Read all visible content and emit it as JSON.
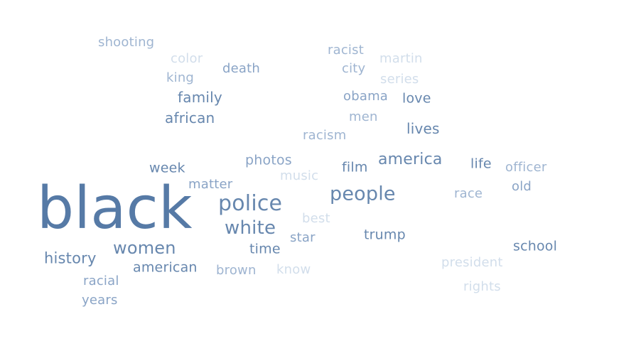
{
  "cloud": {
    "colors": {
      "c1": "#567aa6",
      "c2": "#6787ae",
      "c3": "#7693b8",
      "c4": "#8aa4c6",
      "c5": "#9fb5d1",
      "c6": "#b6c7dd",
      "c7": "#d2deeb",
      "c8": "#dbe4ef"
    },
    "words": [
      {
        "text": "black",
        "tone": "c1"
      },
      {
        "text": "police",
        "tone": "c2"
      },
      {
        "text": "white",
        "tone": "c2"
      },
      {
        "text": "people",
        "tone": "c2"
      },
      {
        "text": "women",
        "tone": "c2"
      },
      {
        "text": "america",
        "tone": "c2"
      },
      {
        "text": "history",
        "tone": "c2"
      },
      {
        "text": "african",
        "tone": "c2"
      },
      {
        "text": "family",
        "tone": "c2"
      },
      {
        "text": "lives",
        "tone": "c2"
      },
      {
        "text": "love",
        "tone": "c2"
      },
      {
        "text": "week",
        "tone": "c2"
      },
      {
        "text": "film",
        "tone": "c2"
      },
      {
        "text": "life",
        "tone": "c2"
      },
      {
        "text": "trump",
        "tone": "c2"
      },
      {
        "text": "time",
        "tone": "c2"
      },
      {
        "text": "american",
        "tone": "c2"
      },
      {
        "text": "school",
        "tone": "c2"
      },
      {
        "text": "death",
        "tone": "c4"
      },
      {
        "text": "king",
        "tone": "c5"
      },
      {
        "text": "shooting",
        "tone": "c5"
      },
      {
        "text": "racist",
        "tone": "c5"
      },
      {
        "text": "city",
        "tone": "c5"
      },
      {
        "text": "obama",
        "tone": "c4"
      },
      {
        "text": "men",
        "tone": "c5"
      },
      {
        "text": "racism",
        "tone": "c5"
      },
      {
        "text": "photos",
        "tone": "c4"
      },
      {
        "text": "matter",
        "tone": "c4"
      },
      {
        "text": "star",
        "tone": "c4"
      },
      {
        "text": "officer",
        "tone": "c5"
      },
      {
        "text": "old",
        "tone": "c4"
      },
      {
        "text": "race",
        "tone": "c5"
      },
      {
        "text": "brown",
        "tone": "c5"
      },
      {
        "text": "racial",
        "tone": "c4"
      },
      {
        "text": "years",
        "tone": "c4"
      },
      {
        "text": "color",
        "tone": "c7"
      },
      {
        "text": "martin",
        "tone": "c7"
      },
      {
        "text": "series",
        "tone": "c7"
      },
      {
        "text": "music",
        "tone": "c7"
      },
      {
        "text": "best",
        "tone": "c7"
      },
      {
        "text": "know",
        "tone": "c7"
      },
      {
        "text": "president",
        "tone": "c7"
      },
      {
        "text": "rights",
        "tone": "c7"
      }
    ]
  }
}
